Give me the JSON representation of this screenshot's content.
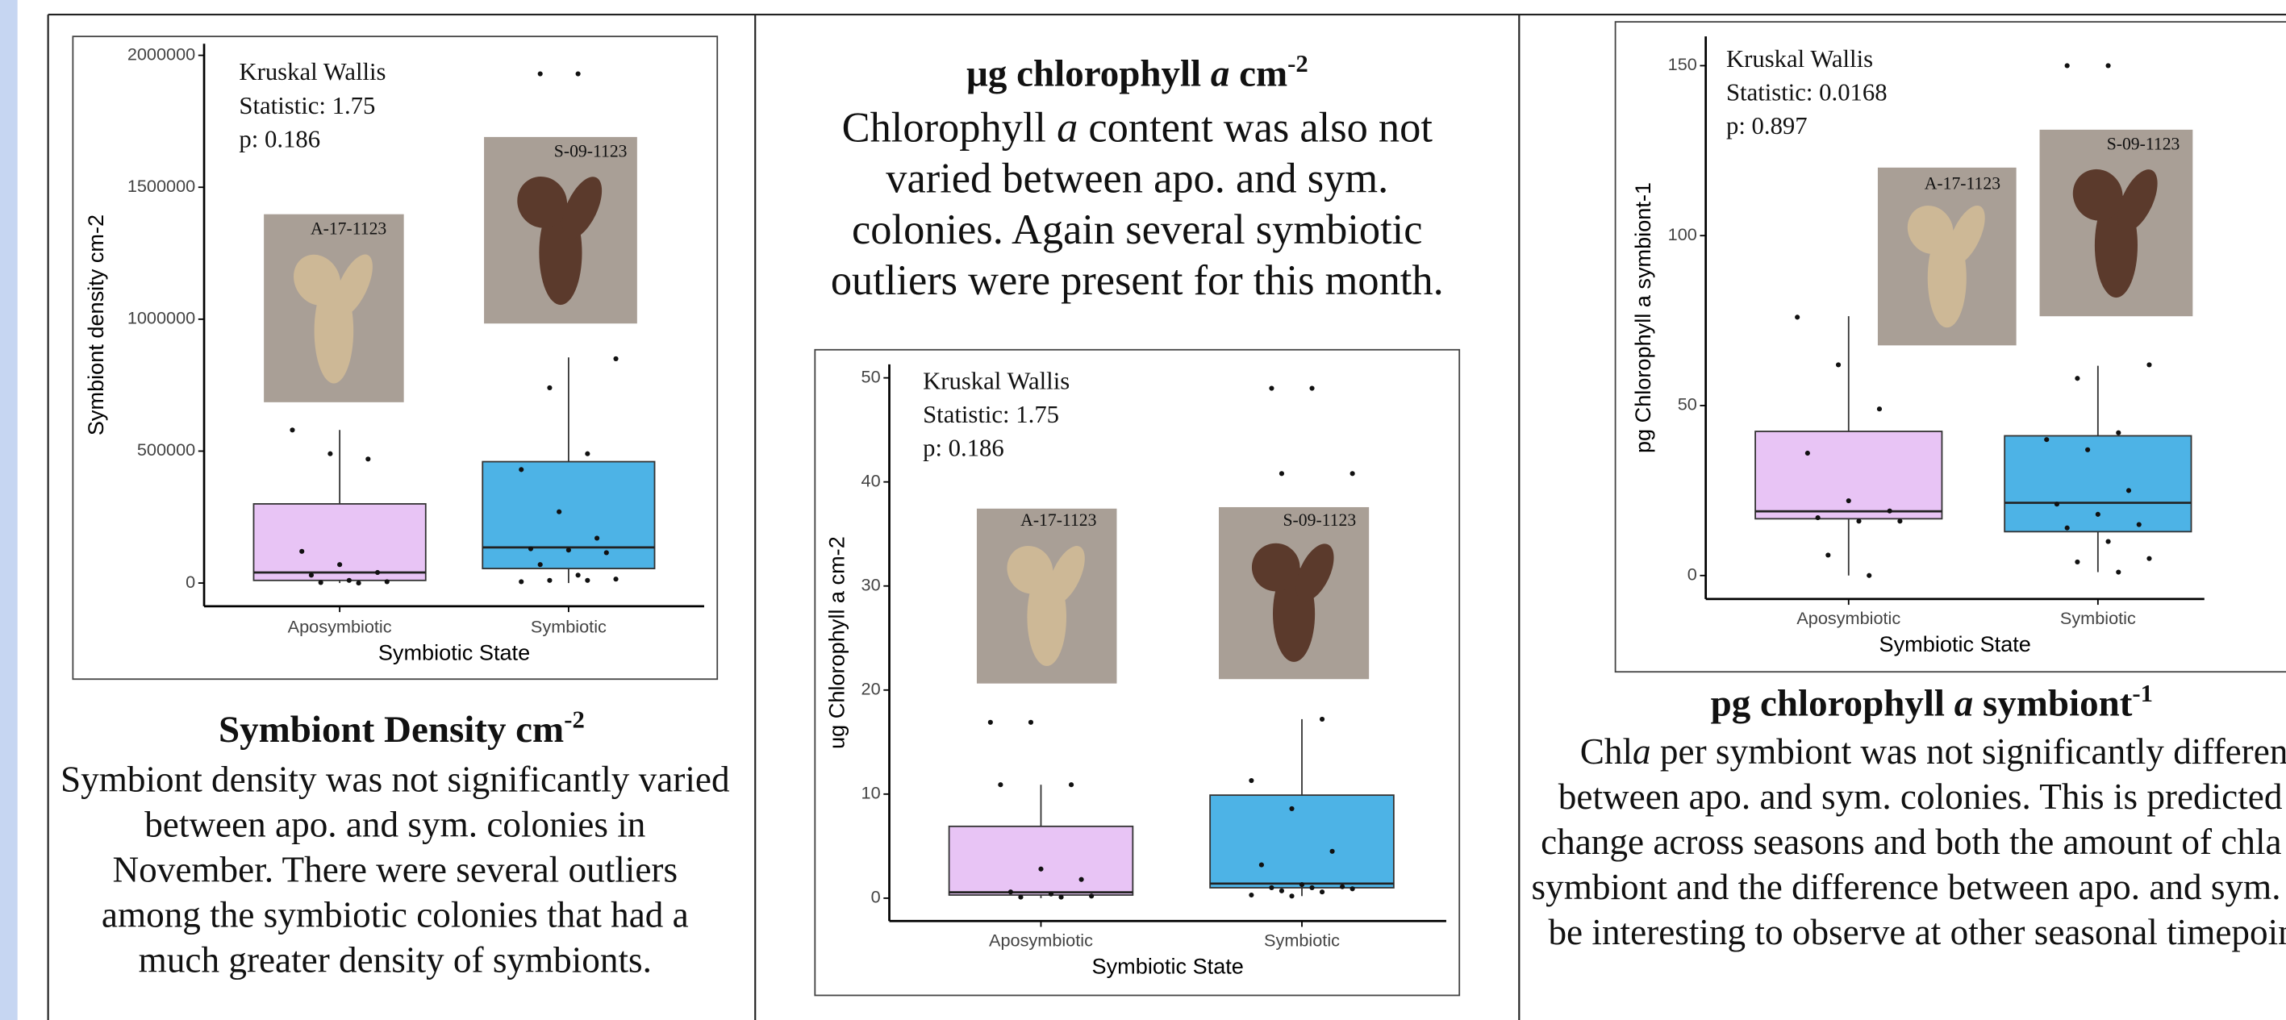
{
  "chart_data": [
    {
      "type": "box",
      "ylabel": "Symbiont density cm-2",
      "xlabel": "Symbiotic State",
      "categories": [
        "Aposymbiotic",
        "Symbiotic"
      ],
      "ylim": [
        -88000,
        2044000
      ],
      "yticks": [
        0,
        500000,
        1000000,
        1500000,
        2000000
      ],
      "annotation": [
        "Kruskal Wallis",
        "Statistic: 1.75",
        "p: 0.186"
      ],
      "photos": [
        "A-17-1123",
        "S-09-1123"
      ],
      "boxes": [
        {
          "color": "#e8c4f5",
          "min": 0,
          "q1": 10000,
          "median": 40000,
          "q3": 300000,
          "max": 580000,
          "points": [
            580000,
            490000,
            470000,
            120000,
            70000,
            40000,
            30000,
            10000,
            5000,
            2000,
            0
          ]
        },
        {
          "color": "#4db3e6",
          "min": 0,
          "q1": 55000,
          "median": 135000,
          "q3": 460000,
          "max": 855000,
          "points": [
            1930000,
            1930000,
            850000,
            740000,
            490000,
            430000,
            270000,
            170000,
            130000,
            125000,
            115000,
            70000,
            30000,
            15000,
            10000,
            10000,
            5000
          ]
        }
      ]
    },
    {
      "type": "box",
      "ylabel": "ug Chlorophyll a cm-2",
      "xlabel": "Symbiotic State",
      "categories": [
        "Aposymbiotic",
        "Symbiotic"
      ],
      "ylim": [
        -2.2,
        51.3
      ],
      "yticks": [
        0,
        10,
        20,
        30,
        40,
        50
      ],
      "annotation": [
        "Kruskal Wallis",
        "Statistic: 1.75",
        "p: 0.186"
      ],
      "photos": [
        "A-17-1123",
        "S-09-1123"
      ],
      "boxes": [
        {
          "color": "#e8c4f5",
          "min": 0,
          "q1": 0.3,
          "median": 0.56,
          "q3": 6.9,
          "max": 10.9,
          "points": [
            16.9,
            16.9,
            10.9,
            10.9,
            2.8,
            1.8,
            0.6,
            0.4,
            0.2,
            0.1,
            0.1
          ]
        },
        {
          "color": "#4db3e6",
          "min": 0.2,
          "q1": 1.0,
          "median": 1.4,
          "q3": 9.9,
          "max": 17.2,
          "points": [
            49,
            49,
            40.8,
            40.8,
            17.2,
            11.3,
            8.6,
            4.5,
            3.2,
            1.3,
            1.1,
            1.0,
            1.0,
            0.9,
            0.7,
            0.6,
            0.3,
            0.2
          ]
        }
      ]
    },
    {
      "type": "box",
      "ylabel": "pg Chlorophyll a symbiont-1",
      "xlabel": "Symbiotic State",
      "categories": [
        "Aposymbiotic",
        "Symbiotic"
      ],
      "ylim": [
        -6.9,
        158.6
      ],
      "yticks": [
        0,
        50,
        100,
        150
      ],
      "annotation": [
        "Kruskal Wallis",
        "Statistic: 0.0168",
        "p: 0.897"
      ],
      "photos": [
        "A-17-1123",
        "S-09-1123"
      ],
      "boxes": [
        {
          "color": "#e8c4f5",
          "min": 0,
          "q1": 16.7,
          "median": 18.9,
          "q3": 42.4,
          "max": 76.3,
          "points": [
            76,
            62,
            49,
            36,
            22,
            19,
            17,
            16,
            16,
            6,
            0
          ]
        },
        {
          "color": "#4db3e6",
          "min": 1,
          "q1": 12.9,
          "median": 21.4,
          "q3": 41.1,
          "max": 61.7,
          "points": [
            150,
            150,
            62,
            58,
            42,
            40,
            37,
            25,
            21,
            18,
            15,
            14,
            10,
            5,
            4,
            1
          ]
        }
      ]
    }
  ],
  "panels": [
    {
      "heading": [
        "Symbiont Density cm",
        "-2"
      ],
      "body": [
        "Symbiont density was not significantly varied between apo. and sym. colonies in November. There were several outliers among the symbiotic colonies that had a much greater density of symbionts."
      ]
    },
    {
      "heading": [
        "µg chlorophyll ",
        "a",
        " cm",
        "-2"
      ],
      "body": [
        "Chlorophyll ",
        "a",
        " content was also not varied between apo. and sym. colonies. Again several symbiotic outliers were present for this month."
      ]
    },
    {
      "heading": [
        "pg chlorophyll ",
        "a",
        " symbiont",
        "-1"
      ],
      "body": [
        "Chl",
        "a",
        " per symbiont was not significantly different between apo. and sym. colonies. This is predicted to change across seasons and both the amount of chla per symbiont and the difference between apo. and sym. will be interesting to observe at other seasonal timepoints."
      ]
    }
  ]
}
